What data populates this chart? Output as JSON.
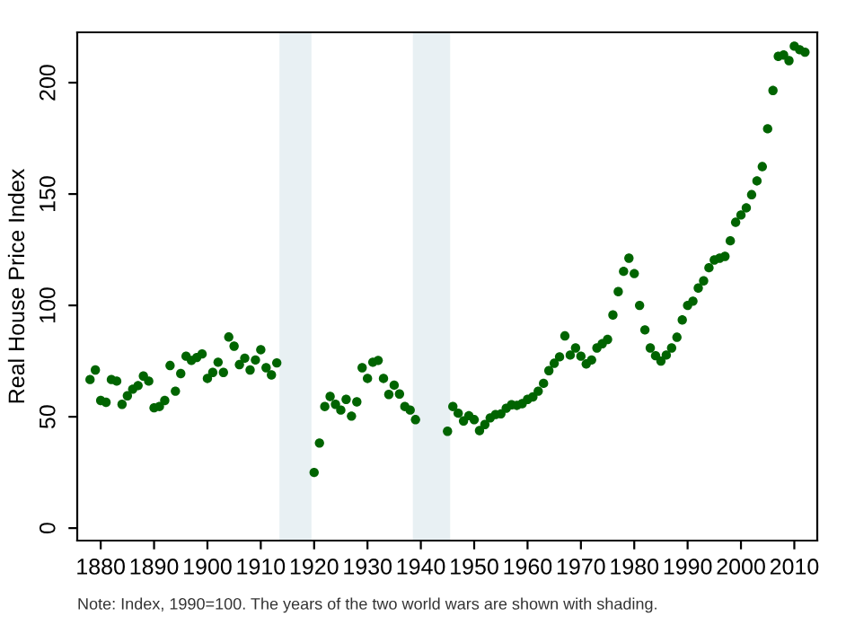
{
  "chart_data": {
    "type": "scatter",
    "ylabel": "Real House Price Index",
    "x": [
      1878,
      1879,
      1880,
      1881,
      1882,
      1883,
      1884,
      1885,
      1886,
      1887,
      1888,
      1889,
      1890,
      1891,
      1892,
      1893,
      1894,
      1895,
      1896,
      1897,
      1898,
      1899,
      1900,
      1901,
      1902,
      1903,
      1904,
      1905,
      1906,
      1907,
      1908,
      1909,
      1910,
      1911,
      1912,
      1913,
      1920,
      1921,
      1922,
      1923,
      1924,
      1925,
      1926,
      1927,
      1928,
      1929,
      1930,
      1931,
      1932,
      1933,
      1934,
      1935,
      1936,
      1937,
      1938,
      1939,
      1945,
      1946,
      1947,
      1948,
      1949,
      1950,
      1951,
      1952,
      1953,
      1954,
      1955,
      1956,
      1957,
      1958,
      1959,
      1960,
      1961,
      1962,
      1963,
      1964,
      1965,
      1966,
      1967,
      1968,
      1969,
      1970,
      1971,
      1972,
      1973,
      1974,
      1975,
      1976,
      1977,
      1978,
      1979,
      1980,
      1981,
      1982,
      1983,
      1984,
      1985,
      1986,
      1987,
      1988,
      1989,
      1990,
      1991,
      1992,
      1993,
      1994,
      1995,
      1996,
      1997,
      1998,
      1999,
      2000,
      2001,
      2002,
      2003,
      2004,
      2005,
      2006,
      2007,
      2008,
      2009,
      2010,
      2011,
      2012
    ],
    "values": [
      66.7,
      71,
      57.3,
      56.5,
      66.7,
      66,
      55.6,
      59.4,
      62.4,
      64,
      68.3,
      66,
      54,
      54.6,
      57.3,
      73,
      61.5,
      69.4,
      77.2,
      75.3,
      76.6,
      78.2,
      67.2,
      69.9,
      74.5,
      69.9,
      85.8,
      81.7,
      73.4,
      76.3,
      71,
      75.5,
      80.1,
      72,
      68.8,
      74.2,
      25,
      38.2,
      54.6,
      59.1,
      55.6,
      53,
      57.8,
      50.3,
      56.7,
      72,
      67.2,
      74.5,
      75.3,
      67.2,
      60,
      64.2,
      60.2,
      54.6,
      53,
      48.7,
      43.5,
      54.6,
      51.6,
      48.1,
      50.5,
      48.7,
      43.8,
      46.5,
      49.5,
      51,
      51.3,
      53.8,
      55.4,
      55.1,
      55.9,
      57.8,
      58.9,
      61.5,
      65,
      70.7,
      74,
      76.9,
      86.3,
      77.7,
      80.9,
      77.2,
      73.7,
      75.5,
      80.9,
      82.8,
      84.7,
      95.7,
      106.2,
      115.3,
      121.2,
      114.3,
      100,
      89,
      80.9,
      77.4,
      75,
      77.7,
      80.9,
      85.7,
      93.5,
      100,
      101.9,
      107.8,
      111,
      116.9,
      120.4,
      121.2,
      122,
      129,
      137.3,
      140.6,
      143.8,
      149.7,
      155.9,
      162.3,
      179.3,
      196.5,
      211.8,
      212.4,
      209.9,
      216.4,
      214.8,
      213.7
    ],
    "color": "#006400",
    "marker": "circle",
    "xlim": [
      1875.6,
      2014.3
    ],
    "ylim": [
      -5.6,
      222.6
    ],
    "xticks": [
      1880,
      1890,
      1900,
      1910,
      1920,
      1930,
      1940,
      1950,
      1960,
      1970,
      1980,
      1990,
      2000,
      2010
    ],
    "yticks": [
      0,
      50,
      100,
      150,
      200
    ],
    "bands": [
      {
        "axis": "x",
        "from": 1913.5,
        "to": 1919.5,
        "color": "#e8f0f3"
      },
      {
        "axis": "x",
        "from": 1938.5,
        "to": 1945.5,
        "color": "#e8f0f3"
      }
    ],
    "grid": false,
    "legend": false,
    "annotations": [
      "Note: Index, 1990=100. The years of the two world wars are shown with shading."
    ]
  }
}
